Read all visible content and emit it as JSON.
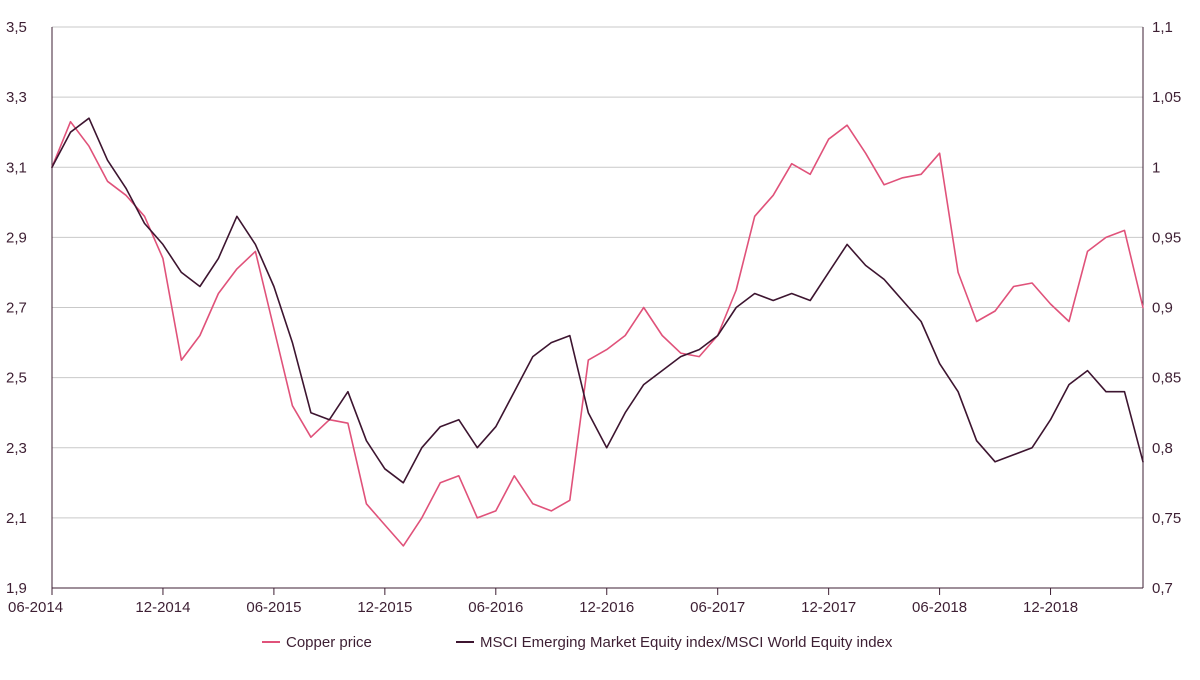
{
  "chart_data": {
    "type": "line",
    "title": "",
    "xlabel": "",
    "ylabel_left": "",
    "ylabel_right": "",
    "x_ticks": [
      "06-2014",
      "12-2014",
      "06-2015",
      "12-2015",
      "06-2016",
      "12-2016",
      "06-2017",
      "12-2017",
      "06-2018",
      "12-2018"
    ],
    "y_left": {
      "lim": [
        1.9,
        3.5
      ],
      "ticks": [
        "1,9",
        "2,1",
        "2,3",
        "2,5",
        "2,7",
        "2,9",
        "3,1",
        "3,3",
        "3,5"
      ]
    },
    "y_right": {
      "lim": [
        0.7,
        1.1
      ],
      "ticks": [
        "0,7",
        "0,75",
        "0,8",
        "0,85",
        "0,9",
        "0,95",
        "1",
        "1,05",
        "1,1"
      ]
    },
    "grid": "horizontal",
    "legend_position": "bottom",
    "x_range": [
      "2014-06",
      "2019-05"
    ],
    "series": [
      {
        "name": "Copper price",
        "axis": "left",
        "color": "#e0527a",
        "points": [
          [
            "2014-06",
            3.1
          ],
          [
            "2014-07",
            3.23
          ],
          [
            "2014-08",
            3.16
          ],
          [
            "2014-09",
            3.06
          ],
          [
            "2014-10",
            3.02
          ],
          [
            "2014-11",
            2.96
          ],
          [
            "2014-12",
            2.84
          ],
          [
            "2015-01",
            2.55
          ],
          [
            "2015-02",
            2.62
          ],
          [
            "2015-03",
            2.74
          ],
          [
            "2015-04",
            2.81
          ],
          [
            "2015-05",
            2.86
          ],
          [
            "2015-06",
            2.64
          ],
          [
            "2015-07",
            2.42
          ],
          [
            "2015-08",
            2.33
          ],
          [
            "2015-09",
            2.38
          ],
          [
            "2015-10",
            2.37
          ],
          [
            "2015-11",
            2.14
          ],
          [
            "2015-12",
            2.08
          ],
          [
            "2016-01",
            2.02
          ],
          [
            "2016-02",
            2.1
          ],
          [
            "2016-03",
            2.2
          ],
          [
            "2016-04",
            2.22
          ],
          [
            "2016-05",
            2.1
          ],
          [
            "2016-06",
            2.12
          ],
          [
            "2016-07",
            2.22
          ],
          [
            "2016-08",
            2.14
          ],
          [
            "2016-09",
            2.12
          ],
          [
            "2016-10",
            2.15
          ],
          [
            "2016-11",
            2.55
          ],
          [
            "2016-12",
            2.58
          ],
          [
            "2017-01",
            2.62
          ],
          [
            "2017-02",
            2.7
          ],
          [
            "2017-03",
            2.62
          ],
          [
            "2017-04",
            2.57
          ],
          [
            "2017-05",
            2.56
          ],
          [
            "2017-06",
            2.62
          ],
          [
            "2017-07",
            2.75
          ],
          [
            "2017-08",
            2.96
          ],
          [
            "2017-09",
            3.02
          ],
          [
            "2017-10",
            3.11
          ],
          [
            "2017-11",
            3.08
          ],
          [
            "2017-12",
            3.18
          ],
          [
            "2018-01",
            3.22
          ],
          [
            "2018-02",
            3.14
          ],
          [
            "2018-03",
            3.05
          ],
          [
            "2018-04",
            3.07
          ],
          [
            "2018-05",
            3.08
          ],
          [
            "2018-06",
            3.14
          ],
          [
            "2018-07",
            2.8
          ],
          [
            "2018-08",
            2.66
          ],
          [
            "2018-09",
            2.69
          ],
          [
            "2018-10",
            2.76
          ],
          [
            "2018-11",
            2.77
          ],
          [
            "2018-12",
            2.71
          ],
          [
            "2019-01",
            2.66
          ],
          [
            "2019-02",
            2.86
          ],
          [
            "2019-03",
            2.9
          ],
          [
            "2019-04",
            2.92
          ],
          [
            "2019-05",
            2.7
          ]
        ]
      },
      {
        "name": "MSCI Emerging Market Equity index/MSCI World Equity index",
        "axis": "right",
        "color": "#3d1530",
        "points": [
          [
            "2014-06",
            1.0
          ],
          [
            "2014-07",
            1.025
          ],
          [
            "2014-08",
            1.035
          ],
          [
            "2014-09",
            1.005
          ],
          [
            "2014-10",
            0.985
          ],
          [
            "2014-11",
            0.96
          ],
          [
            "2014-12",
            0.945
          ],
          [
            "2015-01",
            0.925
          ],
          [
            "2015-02",
            0.915
          ],
          [
            "2015-03",
            0.935
          ],
          [
            "2015-04",
            0.965
          ],
          [
            "2015-05",
            0.945
          ],
          [
            "2015-06",
            0.915
          ],
          [
            "2015-07",
            0.875
          ],
          [
            "2015-08",
            0.825
          ],
          [
            "2015-09",
            0.82
          ],
          [
            "2015-10",
            0.84
          ],
          [
            "2015-11",
            0.805
          ],
          [
            "2015-12",
            0.785
          ],
          [
            "2016-01",
            0.775
          ],
          [
            "2016-02",
            0.8
          ],
          [
            "2016-03",
            0.815
          ],
          [
            "2016-04",
            0.82
          ],
          [
            "2016-05",
            0.8
          ],
          [
            "2016-06",
            0.815
          ],
          [
            "2016-07",
            0.84
          ],
          [
            "2016-08",
            0.865
          ],
          [
            "2016-09",
            0.875
          ],
          [
            "2016-10",
            0.88
          ],
          [
            "2016-11",
            0.825
          ],
          [
            "2016-12",
            0.8
          ],
          [
            "2017-01",
            0.825
          ],
          [
            "2017-02",
            0.845
          ],
          [
            "2017-03",
            0.855
          ],
          [
            "2017-04",
            0.865
          ],
          [
            "2017-05",
            0.87
          ],
          [
            "2017-06",
            0.88
          ],
          [
            "2017-07",
            0.9
          ],
          [
            "2017-08",
            0.91
          ],
          [
            "2017-09",
            0.905
          ],
          [
            "2017-10",
            0.91
          ],
          [
            "2017-11",
            0.905
          ],
          [
            "2017-12",
            0.925
          ],
          [
            "2018-01",
            0.945
          ],
          [
            "2018-02",
            0.93
          ],
          [
            "2018-03",
            0.92
          ],
          [
            "2018-04",
            0.905
          ],
          [
            "2018-05",
            0.89
          ],
          [
            "2018-06",
            0.86
          ],
          [
            "2018-07",
            0.84
          ],
          [
            "2018-08",
            0.805
          ],
          [
            "2018-09",
            0.79
          ],
          [
            "2018-10",
            0.795
          ],
          [
            "2018-11",
            0.8
          ],
          [
            "2018-12",
            0.82
          ],
          [
            "2019-01",
            0.845
          ],
          [
            "2019-02",
            0.855
          ],
          [
            "2019-03",
            0.84
          ],
          [
            "2019-04",
            0.84
          ],
          [
            "2019-05",
            0.79
          ]
        ]
      }
    ]
  }
}
